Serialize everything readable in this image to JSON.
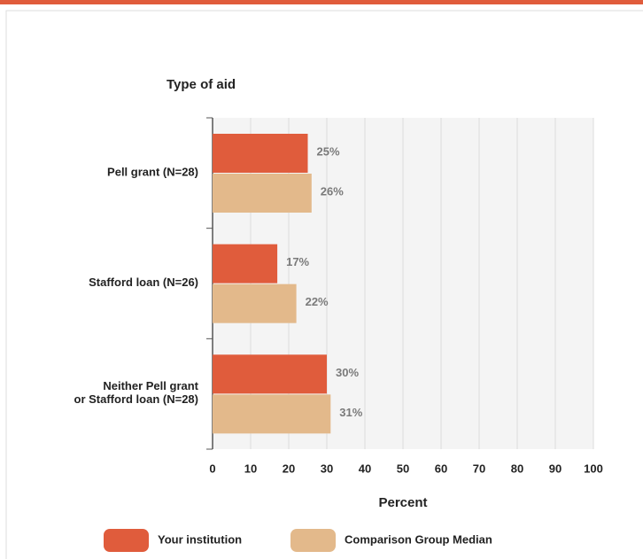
{
  "chart_data": {
    "type": "hbar",
    "title": "Type of aid",
    "xlabel": "Percent",
    "categories": [
      "Pell grant  (N=28)",
      "Stafford loan (N=26)",
      "Neither Pell grant\nor Stafford loan (N=28)"
    ],
    "series": [
      {
        "name": "Your institution",
        "color": "#e05c3c",
        "values": [
          25,
          17,
          30
        ],
        "value_labels": [
          "25%",
          "17%",
          "30%"
        ]
      },
      {
        "name": "Comparison Group Median",
        "color": "#e3b98b",
        "values": [
          26,
          22,
          31
        ],
        "value_labels": [
          "26%",
          "22%",
          "31%"
        ]
      }
    ],
    "xlim": [
      0,
      100
    ],
    "xticks": [
      0,
      10,
      20,
      30,
      40,
      50,
      60,
      70,
      80,
      90,
      100
    ],
    "grid": true
  }
}
